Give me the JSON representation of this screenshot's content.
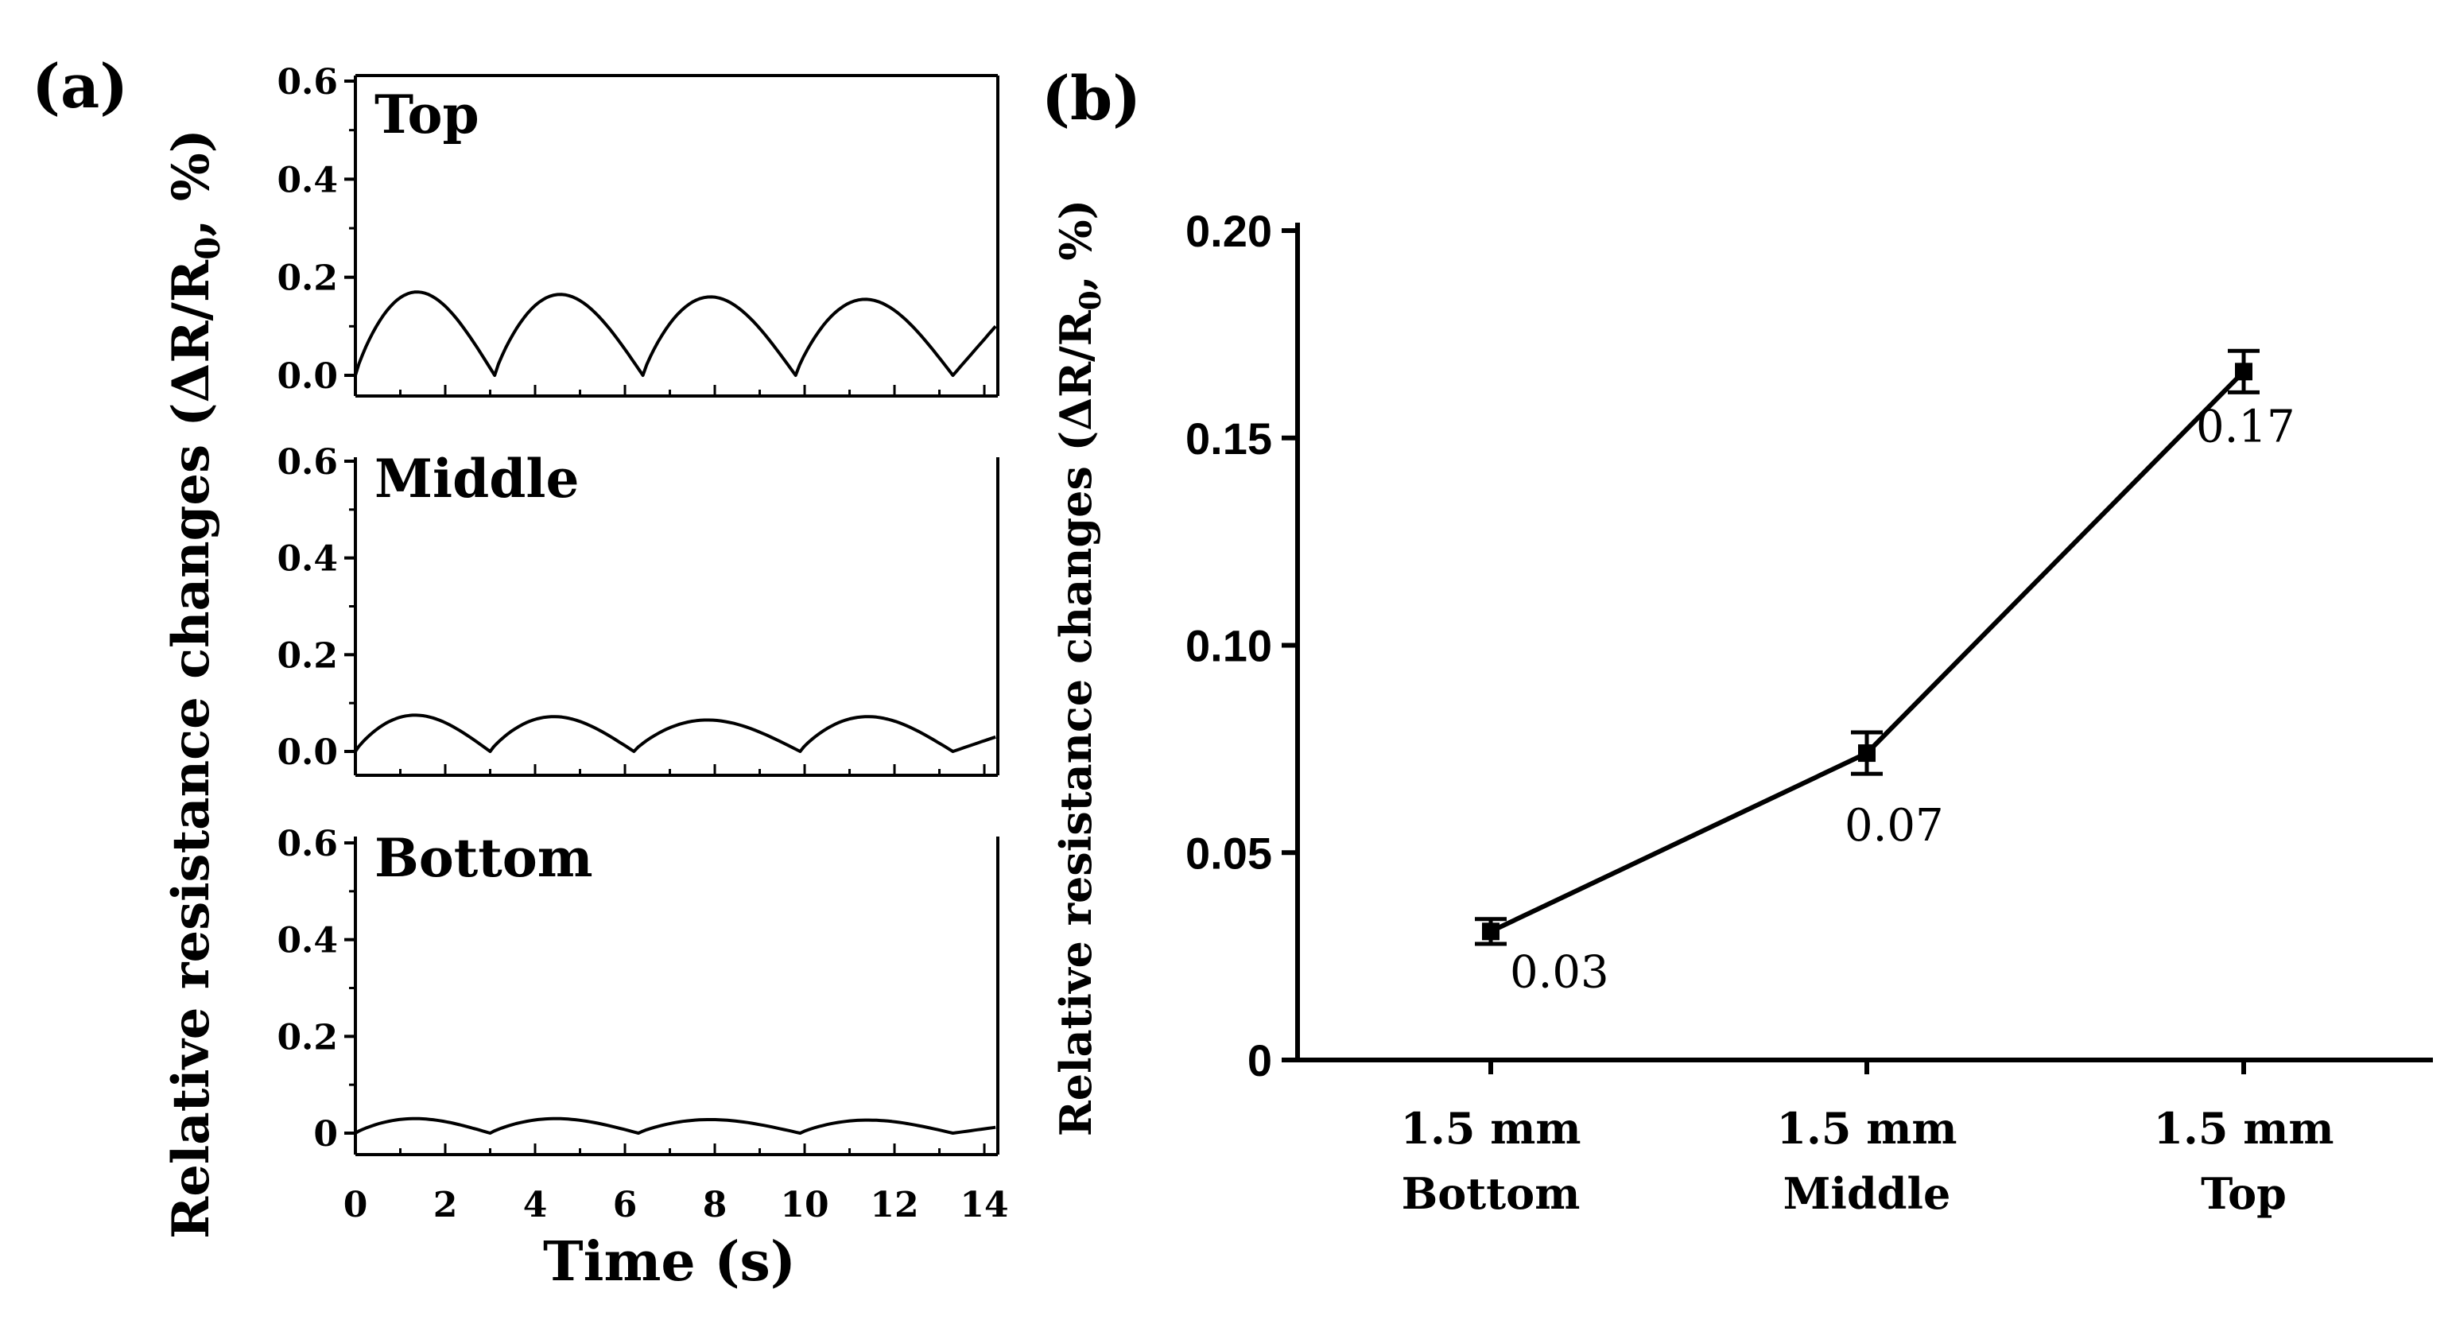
{
  "panel_a": {
    "label": "(a)",
    "ylabel": "Relative resistance changes (ΔR/R",
    "ylabel_sub": "0",
    "ylabel_end": ", %)",
    "xlabel": "Time (s)",
    "xticks": [
      "0",
      "2",
      "4",
      "6",
      "8",
      "10",
      "12",
      "14"
    ],
    "ytick_labels_top": [
      "0.0",
      "0.2",
      "0.4",
      "0.6"
    ],
    "ytick_labels_middle": [
      "0.0",
      "0.2",
      "0.4",
      "0.6"
    ],
    "ytick_labels_bottom": [
      "0",
      "0.2",
      "0.4",
      "0.6"
    ]
  },
  "panel_b": {
    "label": "(b)",
    "ylabel": "Relative resistance changes (ΔR/R",
    "ylabel_sub": "0",
    "ylabel_end": ", %)",
    "yticks": [
      "0",
      "0.05",
      "0.10",
      "0.15",
      "0.20"
    ],
    "cat_line1": [
      "1.5 mm",
      "1.5 mm",
      "1.5 mm"
    ],
    "cat_line2": [
      "Bottom",
      "Middle",
      "Top"
    ],
    "point_labels": [
      "0.03",
      "0.07",
      "0.17"
    ]
  },
  "chart_data": [
    {
      "type": "line",
      "title": "Top",
      "xlabel": "Time (s)",
      "ylabel": "Relative resistance changes (ΔR/R0, %)",
      "xlim": [
        0,
        14.3
      ],
      "ylim": [
        -0.04,
        0.6
      ],
      "cycle_starts": [
        0,
        3.1,
        6.4,
        9.8,
        13.3
      ],
      "cycle_peaks": [
        0.17,
        0.165,
        0.16,
        0.155
      ],
      "end_value": 0.1
    },
    {
      "type": "line",
      "title": "Middle",
      "xlabel": "Time (s)",
      "ylabel": "Relative resistance changes (ΔR/R0, %)",
      "xlim": [
        0,
        14.3
      ],
      "ylim": [
        -0.04,
        0.6
      ],
      "cycle_starts": [
        0,
        3.0,
        6.2,
        9.9,
        13.3
      ],
      "cycle_peaks": [
        0.075,
        0.072,
        0.065,
        0.072
      ],
      "end_value": 0.03
    },
    {
      "type": "line",
      "title": "Bottom",
      "xlabel": "Time (s)",
      "ylabel": "Relative resistance changes (ΔR/R0, %)",
      "xlim": [
        0,
        14.3
      ],
      "ylim": [
        -0.04,
        0.6
      ],
      "cycle_starts": [
        0,
        3.0,
        6.3,
        9.9,
        13.3
      ],
      "cycle_peaks": [
        0.03,
        0.03,
        0.028,
        0.027
      ],
      "end_value": 0.012
    },
    {
      "type": "line",
      "title": "",
      "xlabel": "",
      "ylabel": "Relative resistance changes (ΔR/R0, %)",
      "categories": [
        "1.5 mm Bottom",
        "1.5 mm Middle",
        "1.5 mm Top"
      ],
      "values": [
        0.031,
        0.074,
        0.166
      ],
      "errors": [
        0.003,
        0.005,
        0.005
      ],
      "ylim": [
        0,
        0.2
      ]
    }
  ]
}
